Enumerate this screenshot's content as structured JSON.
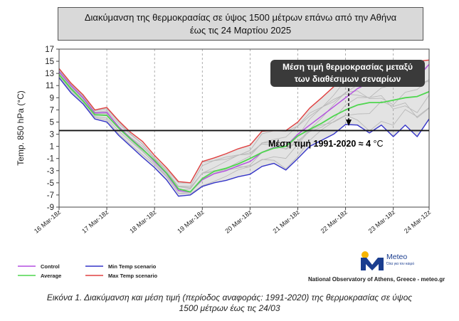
{
  "title_line1": "Διακύμανση της θερμοκρασίας σε ύψος 1500 μέτρων επάνω από την Αθήνα",
  "title_line2": "έως τις 24 Μαρτίου 2025",
  "callout_line1": "Μέση τιμή θερμοκρασίας μεταξύ",
  "callout_line2": "των διαθέσιμων σεναρίων",
  "mean_label": "Μέση τιμή 1991-2020 ≈ 4",
  "mean_unit": "°C",
  "logo_text": "Meteo",
  "logo_subtext": "Όλα για τον καιρό",
  "observatory": "National Observatory of Athens, Greece - meteo.gr",
  "caption_line1": "Εικόνα 1. Διακύμανση και μέση τιμή (περίοδος αναφοράς: 1991-2020) της θερμοκρασίας σε ύψος",
  "caption_line2": "1500 μέτρων έως τις 24/03",
  "colors": {
    "control": "#b44fe0",
    "average": "#4fd64f",
    "min": "#3535c8",
    "max": "#e04040",
    "members": "#b9b9b9",
    "spread": "#e3e3e3",
    "mean_line": "#111111"
  },
  "chart_data": {
    "type": "line",
    "ylabel": "Temp. 850 hPa (°C)",
    "xlabel": "",
    "ylim": [
      -9,
      17
    ],
    "yticks": [
      17,
      15,
      13,
      11,
      9,
      7,
      5,
      3,
      1,
      -1,
      -3,
      -5,
      -7,
      -9
    ],
    "xlim": [
      0,
      31
    ],
    "x_categories": [
      "16 Mar-18z",
      "17 Mar-18z",
      "18 Mar-18z",
      "19 Mar-18z",
      "20 Mar-18z",
      "21 Mar-18z",
      "22 Mar-18z",
      "23 Mar-18z",
      "24 Mar-12z"
    ],
    "x_tick_positions": [
      0,
      4,
      8,
      12,
      16,
      20,
      24,
      28,
      31
    ],
    "climatology_mean": 3.6,
    "x": [
      0,
      1,
      2,
      3,
      4,
      5,
      6,
      7,
      8,
      9,
      10,
      11,
      12,
      13,
      14,
      15,
      16,
      17,
      18,
      19,
      20,
      21,
      22,
      23,
      24,
      25,
      26,
      27,
      28,
      29,
      30,
      31
    ],
    "series": [
      {
        "name": "Control",
        "color_key": "control",
        "values": [
          13.3,
          11,
          9,
          6.5,
          6.6,
          4.2,
          2.3,
          0.6,
          -1.5,
          -3.5,
          -6.3,
          -6.5,
          -4.5,
          -3.5,
          -3,
          -2.2,
          -1.5,
          0,
          0.8,
          1,
          3,
          4.5,
          6,
          7.5,
          9,
          10.5,
          11.5,
          12,
          11.5,
          11.5,
          12.2,
          14.5
        ]
      },
      {
        "name": "Average",
        "color_key": "average",
        "values": [
          12.8,
          10.5,
          8.5,
          6.2,
          6.1,
          4,
          2.2,
          0.5,
          -1.3,
          -3.4,
          -6,
          -6.5,
          -4.3,
          -3.1,
          -2.6,
          -1.9,
          -1,
          0,
          0.7,
          1,
          2.7,
          3.8,
          4.8,
          6,
          7,
          7.8,
          8.2,
          8.2,
          8.6,
          9,
          9.2,
          10
        ]
      },
      {
        "name": "Min Temp scenario",
        "color_key": "min",
        "values": [
          12.3,
          9.8,
          8,
          5.5,
          5,
          2.8,
          1,
          -0.8,
          -2.5,
          -4.5,
          -7.2,
          -7,
          -5.6,
          -5,
          -4.6,
          -4,
          -3.6,
          -2.3,
          -1.8,
          -2.9,
          -1,
          1,
          2,
          3,
          4.6,
          4.5,
          3.2,
          4.5,
          2.6,
          4.5,
          2.6,
          5.5
        ]
      },
      {
        "name": "Max Temp scenario",
        "color_key": "max",
        "values": [
          13.8,
          11.4,
          9.5,
          7,
          7.4,
          5.2,
          3.3,
          1.8,
          -0.5,
          -2.5,
          -4.8,
          -5,
          -1.5,
          -0.9,
          -0.2,
          0.6,
          1.2,
          3.5,
          3.6,
          3.6,
          5,
          7.3,
          9,
          10.8,
          12.5,
          13.5,
          14,
          14.5,
          14.5,
          14.8,
          15,
          15.2
        ]
      }
    ],
    "legend": [
      {
        "label": "Control",
        "color_key": "control"
      },
      {
        "label": "Average",
        "color_key": "average"
      },
      {
        "label": "Min Temp scenario",
        "color_key": "min"
      },
      {
        "label": "Max Temp scenario",
        "color_key": "max"
      }
    ],
    "legend_position": "bottom-left"
  }
}
